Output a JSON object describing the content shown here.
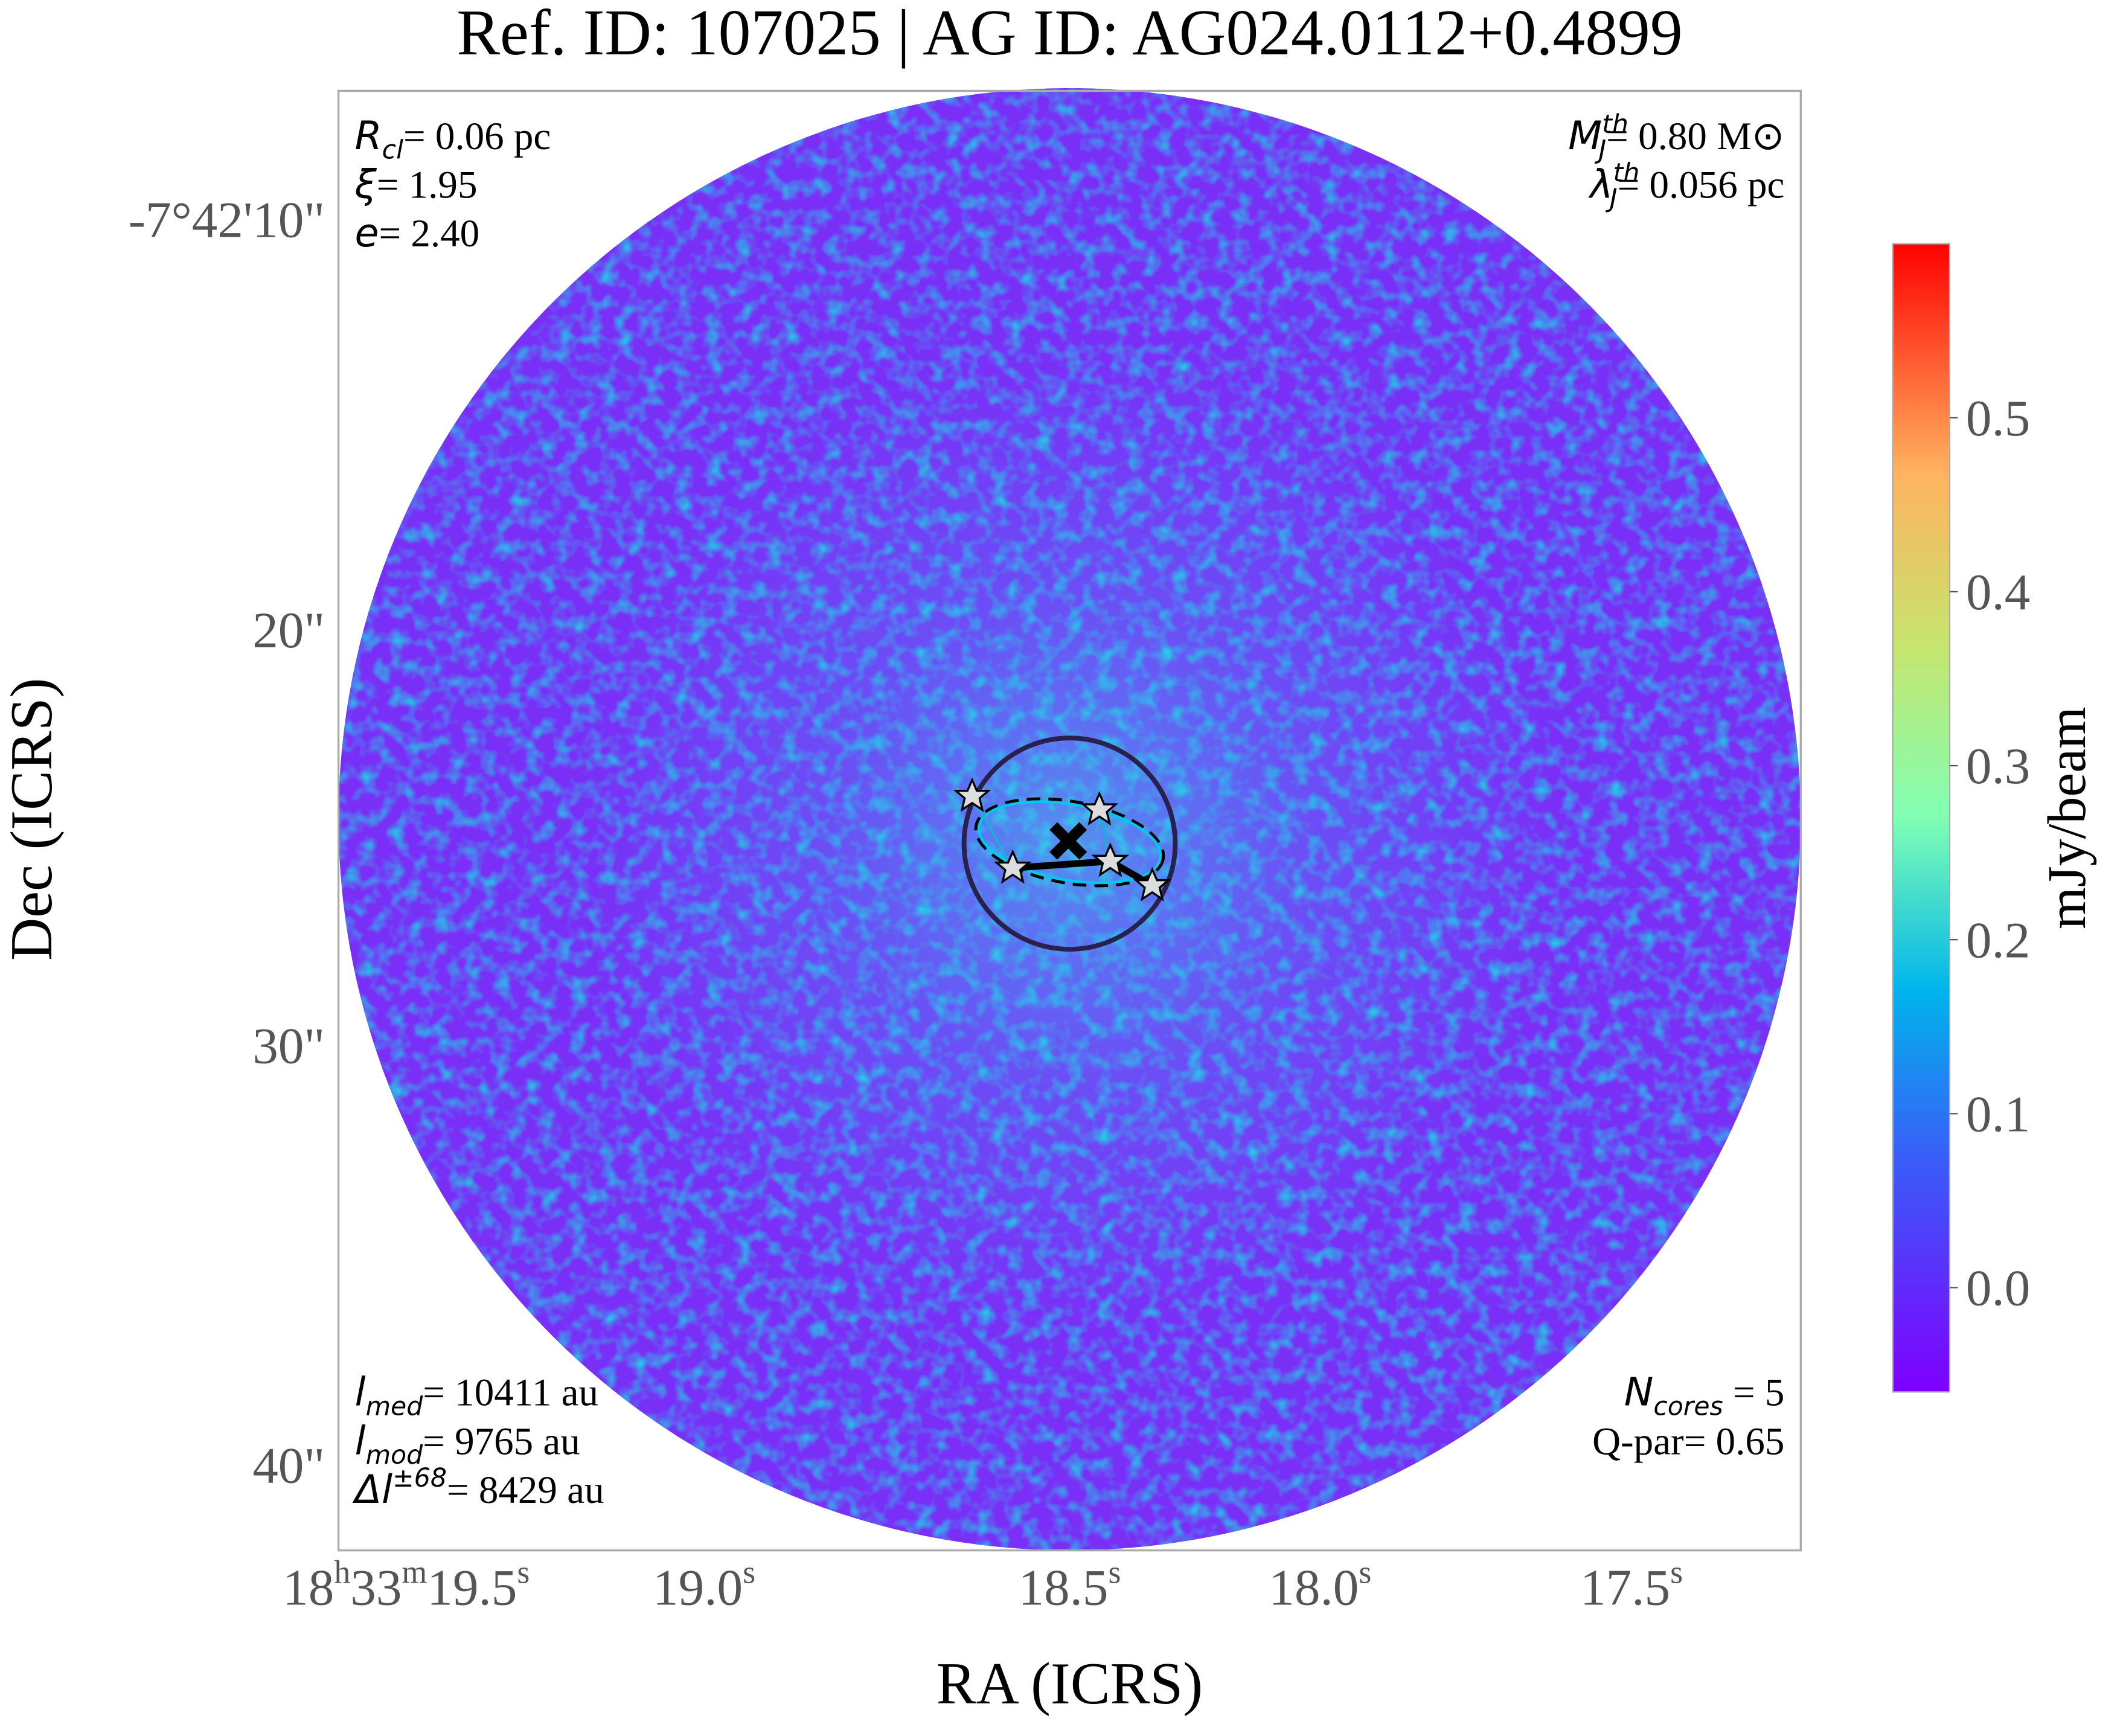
{
  "title": "Ref. ID: 107025 | AG ID: AG024.0112+0.4899",
  "axes": {
    "x_label": "RA (ICRS)",
    "y_label": "Dec (ICRS)",
    "x_ticks": [
      "18h33m19.5s",
      "19.0s",
      "18.5s",
      "18.0s",
      "17.5s"
    ],
    "y_ticks": [
      "-7°42'10\"",
      "20\"",
      "30\"",
      "40\""
    ]
  },
  "colorbar": {
    "label": "mJy/beam",
    "lim": [
      -0.06,
      0.6
    ],
    "ticks": [
      {
        "value": 0,
        "label": "0.0"
      },
      {
        "value": 0.1,
        "label": "0.1"
      },
      {
        "value": 0.2,
        "label": "0.2"
      },
      {
        "value": 0.3,
        "label": "0.3"
      },
      {
        "value": 0.4,
        "label": "0.4"
      },
      {
        "value": 0.5,
        "label": "0.5"
      }
    ]
  },
  "annotations": {
    "top_left": [
      {
        "symbol": "R",
        "sub": "cl",
        "text": "= 0.06 pc"
      },
      {
        "symbol": "ξ",
        "text": "= 1.95"
      },
      {
        "symbol": "e",
        "text": "= 2.40"
      }
    ],
    "top_right": [
      {
        "symbol": "M",
        "sub": "J",
        "sup": "th",
        "text": "= 0.80 M⊙"
      },
      {
        "symbol": "λ",
        "sub": "J",
        "sup": "th",
        "text": "= 0.056 pc"
      }
    ],
    "bottom_left": [
      {
        "symbol": "l",
        "sub": "med",
        "text": "= 10411 au"
      },
      {
        "symbol": "l",
        "sub": "mod",
        "text": "= 9765 au"
      },
      {
        "symbol": "Δl",
        "sup": "±68",
        "text": "= 8429 au"
      }
    ],
    "bottom_right": [
      {
        "symbol": "N",
        "sub": "cores",
        "text": " = 5"
      },
      {
        "symbol": "Q-par",
        "text": "= 0.65"
      }
    ]
  }
}
